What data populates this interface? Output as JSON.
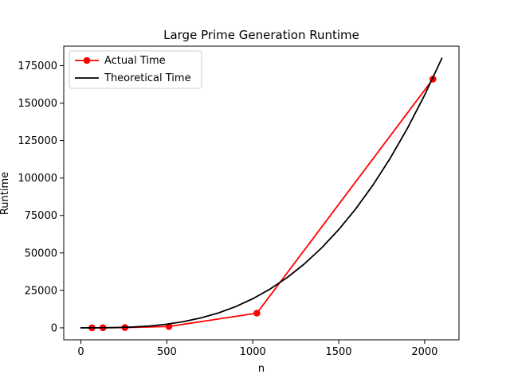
{
  "chart_data": {
    "type": "line",
    "title": "Large Prime Generation Runtime",
    "xlabel": "n",
    "ylabel": "Runtime",
    "xlim": [
      -100,
      2200
    ],
    "ylim": [
      -8000,
      188000
    ],
    "xticks": [
      0,
      500,
      1000,
      1500,
      2000
    ],
    "yticks": [
      0,
      25000,
      50000,
      75000,
      100000,
      125000,
      150000,
      175000
    ],
    "grid": false,
    "legend_position": "upper-left",
    "series": [
      {
        "name": "Actual Time",
        "color": "#ff0000",
        "marker": "circle",
        "x": [
          64,
          128,
          256,
          512,
          1024,
          2048
        ],
        "y": [
          10,
          40,
          200,
          900,
          9800,
          166000
        ]
      },
      {
        "name": "Theoretical Time",
        "color": "#000000",
        "marker": "none",
        "x": [
          0,
          100,
          200,
          300,
          400,
          500,
          600,
          700,
          800,
          900,
          1000,
          1100,
          1200,
          1300,
          1400,
          1500,
          1600,
          1700,
          1800,
          1900,
          2000,
          2100
        ],
        "y": [
          0,
          19,
          155,
          524,
          1243,
          2428,
          4195,
          6661,
          9943,
          14157,
          19420,
          25848,
          33558,
          42666,
          53289,
          65543,
          79545,
          95411,
          113258,
          133203,
          155361,
          179850
        ]
      }
    ]
  }
}
